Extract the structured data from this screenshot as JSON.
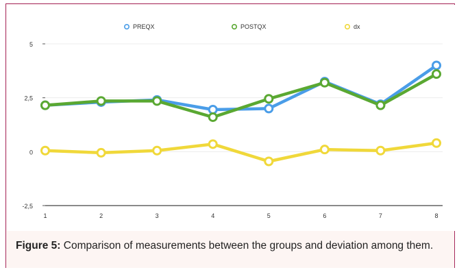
{
  "chart_data": {
    "type": "line",
    "x": [
      "1",
      "2",
      "3",
      "4",
      "5",
      "6",
      "7",
      "8"
    ],
    "series": [
      {
        "name": "PREQX",
        "color": "#4a9de8",
        "values": [
          2.15,
          2.3,
          2.4,
          1.95,
          2.0,
          3.25,
          2.2,
          4.0
        ]
      },
      {
        "name": "POSTQX",
        "color": "#5aa832",
        "values": [
          2.15,
          2.35,
          2.35,
          1.6,
          2.45,
          3.2,
          2.15,
          3.6
        ]
      },
      {
        "name": "dx",
        "color": "#f0d83a",
        "values": [
          0.05,
          -0.05,
          0.05,
          0.35,
          -0.45,
          0.1,
          0.05,
          0.4
        ]
      }
    ],
    "yticks": [
      "5",
      "2,5",
      "0",
      "-2,5"
    ],
    "ytick_values": [
      5,
      2.5,
      0,
      -2.5
    ],
    "ylim": [
      -2.5,
      5
    ],
    "legend_position": "top",
    "grid": true
  },
  "caption": {
    "label": "Figure 5:",
    "text": " Comparison of measurements between the groups and deviation among them."
  }
}
